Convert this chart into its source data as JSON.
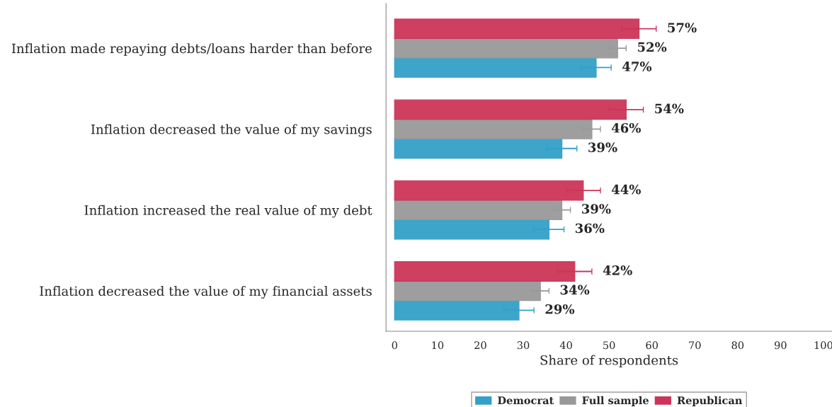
{
  "chart_data": {
    "type": "bar",
    "orientation": "horizontal",
    "xlabel": "Share of respondents",
    "categories": [
      "Inflation made repaying debts/loans harder than before",
      "Inflation decreased the value of my savings",
      "Inflation increased the real value of my debt",
      "Inflation decreased the value of my financial assets"
    ],
    "series": [
      {
        "name": "Democrat",
        "color": "#33a0c8",
        "values": [
          47,
          39,
          36,
          29
        ],
        "errors": [
          3.5,
          3.5,
          3.5,
          3.5
        ],
        "value_labels": [
          "47%",
          "39%",
          "36%",
          "29%"
        ]
      },
      {
        "name": "Full sample",
        "color": "#999999",
        "values": [
          52,
          46,
          39,
          34
        ],
        "errors": [
          2,
          2,
          2,
          2
        ],
        "value_labels": [
          "52%",
          "46%",
          "39%",
          "34%"
        ]
      },
      {
        "name": "Republican",
        "color": "#cc3558",
        "values": [
          57,
          54,
          44,
          42
        ],
        "errors": [
          4,
          4,
          4,
          4
        ],
        "value_labels": [
          "57%",
          "54%",
          "44%",
          "42%"
        ]
      }
    ],
    "xlim": [
      -2,
      102
    ],
    "xticks": [
      0,
      10,
      20,
      30,
      40,
      50,
      60,
      70,
      80,
      90,
      100
    ],
    "grid": false,
    "legend": "bottom"
  }
}
